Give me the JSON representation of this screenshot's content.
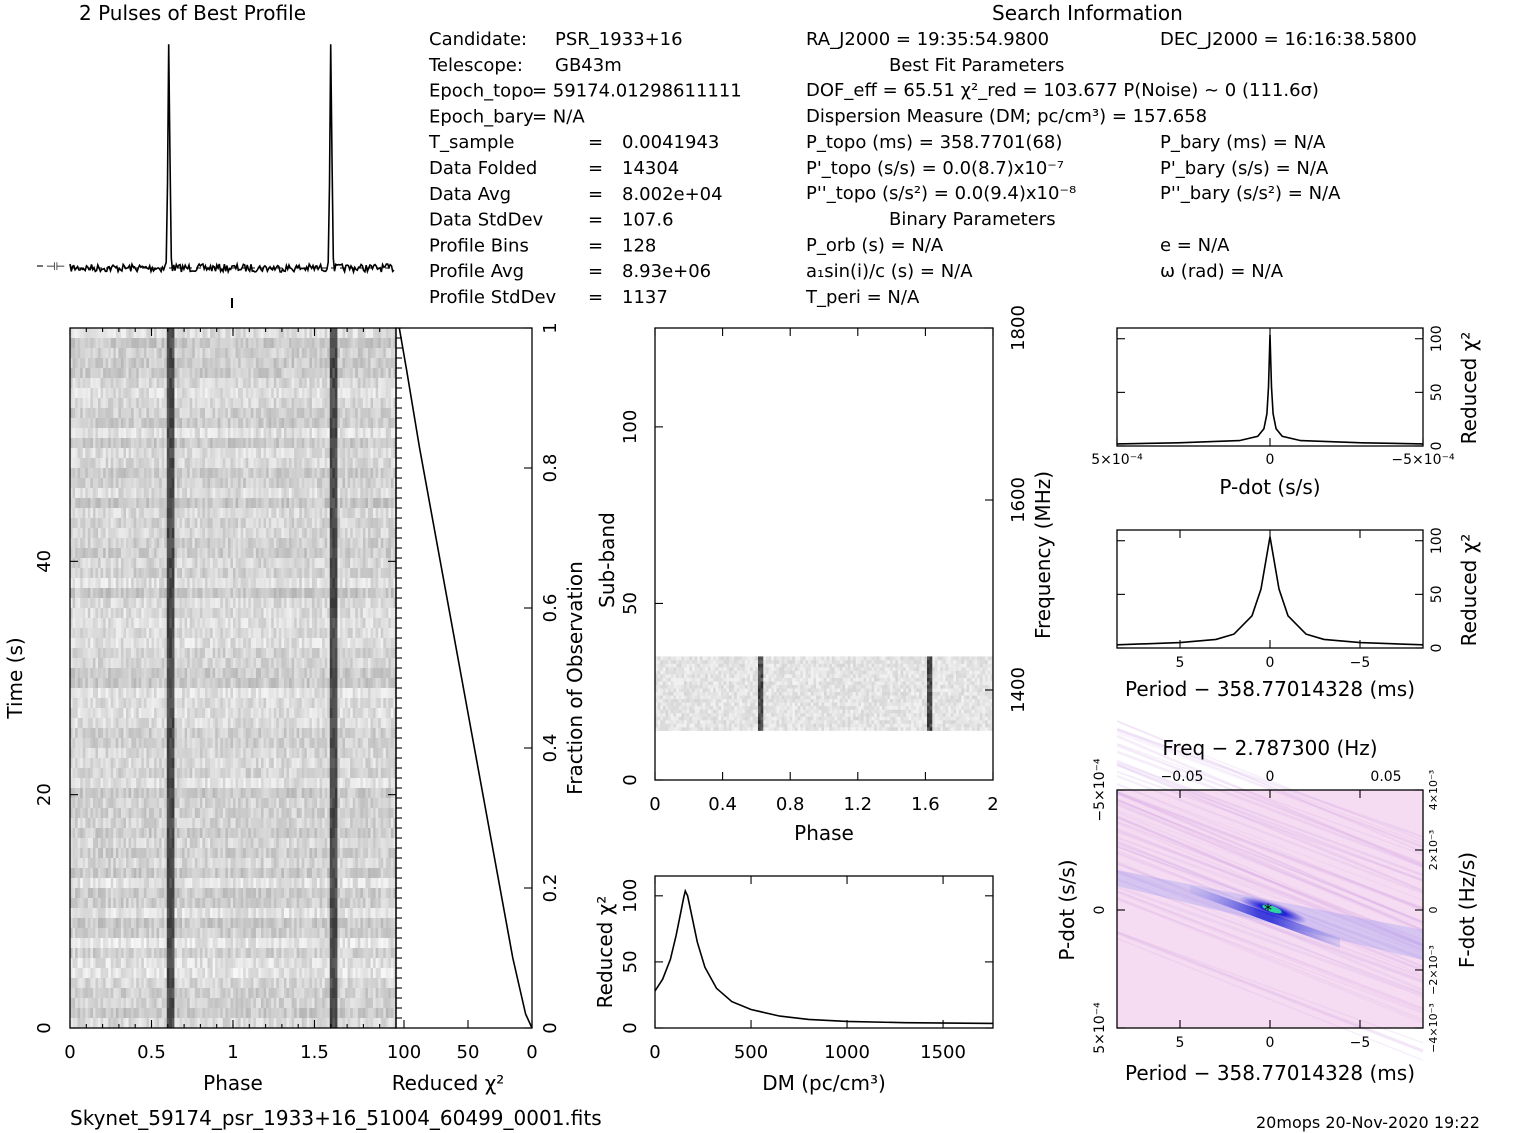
{
  "header": {
    "profile_title": "2 Pulses of Best Profile",
    "search_title": "Search Information",
    "best_fit_title": "Best Fit Parameters",
    "binary_title": "Binary Parameters"
  },
  "info_left": [
    [
      "Candidate:",
      "PSR_1933+16"
    ],
    [
      "Telescope:",
      "GB43m"
    ],
    [
      "Epoch_topo",
      "= 59174.01298611111"
    ],
    [
      "Epoch_bary",
      "= N/A"
    ],
    [
      "T_sample",
      "=",
      "0.0041943"
    ],
    [
      "Data Folded",
      "=",
      "14304"
    ],
    [
      "Data Avg",
      "=",
      "8.002e+04"
    ],
    [
      "Data StdDev",
      "=",
      "107.6"
    ],
    [
      "Profile Bins",
      "=",
      "128"
    ],
    [
      "Profile Avg",
      "=",
      "8.93e+06"
    ],
    [
      "Profile StdDev",
      "=",
      "1137"
    ]
  ],
  "info_mid": {
    "ra": "RA_J2000 = 19:35:54.9800",
    "dof": "DOF_eff = 65.51  χ²_red = 103.677  P(Noise) ~ 0   (111.6σ)",
    "dm": "Dispersion Measure (DM; pc/cm³) = 157.658",
    "p_topo": "P_topo (ms) =  358.7701(68)",
    "pdot_topo": "P'_topo (s/s) = 0.0(8.7)x10⁻⁷",
    "pddot_topo": "P''_topo (s/s²) = 0.0(9.4)x10⁻⁸",
    "p_orb": "P_orb (s) = N/A",
    "a1sini": "a₁sin(i)/c (s) = N/A",
    "t_peri": "T_peri = N/A"
  },
  "info_right": {
    "dec": "DEC_J2000 = 16:16:38.5800",
    "p_bary": "P_bary (ms) = N/A",
    "pdot_bary": "P'_bary (s/s) = N/A",
    "pddot_bary": "P''_bary (s/s²) = N/A",
    "e": "e = N/A",
    "omega": "ω (rad) = N/A"
  },
  "footer": {
    "filename": "Skynet_59174_psr_1933+16_51004_60499_0001.fits",
    "stamp": "20mops 20-Nov-2020 19:22"
  },
  "colors": {
    "grey_base": "#d2d2d2",
    "pulse_line": "#222222",
    "cmap_low": "#f6dcf2",
    "cmap_blue": "#1c1cd6",
    "cmap_green": "#2fd3a0"
  },
  "chart_data": [
    {
      "id": "profile",
      "type": "line",
      "title": "2 Pulses of Best Profile",
      "x": [
        0,
        2
      ],
      "pulse_phases": [
        0.61,
        1.61
      ],
      "peak_relative": 1.0,
      "baseline_relative": 0.0
    },
    {
      "id": "time-phase",
      "type": "heatmap",
      "xlabel": "Phase",
      "ylabel": "Time (s)",
      "xlim": [
        0,
        2
      ],
      "ylim": [
        0,
        60
      ],
      "x_ticks": [
        "0",
        "0.5",
        "1",
        "1.5"
      ],
      "y_ticks": [
        "0",
        "20",
        "40"
      ],
      "pulse_phases": [
        0.61,
        1.61
      ]
    },
    {
      "id": "chi2-vs-fraction",
      "type": "line",
      "xlabel": "Reduced χ²",
      "ylabel": "Fraction of Observation",
      "xlim": [
        100,
        0
      ],
      "ylim": [
        0,
        1
      ],
      "x_ticks": [
        "100",
        "50",
        "0"
      ],
      "y_ticks": [
        "0",
        "0.2",
        "0.4",
        "0.6",
        "0.8",
        "1"
      ],
      "points": [
        [
          0,
          0
        ],
        [
          5,
          0.02
        ],
        [
          15,
          0.1
        ],
        [
          30,
          0.25
        ],
        [
          45,
          0.4
        ],
        [
          60,
          0.55
        ],
        [
          75,
          0.7
        ],
        [
          88,
          0.83
        ],
        [
          98,
          0.94
        ],
        [
          103.677,
          1.0
        ]
      ]
    },
    {
      "id": "subband-phase",
      "type": "heatmap",
      "xlabel": "Phase",
      "ylabel": "Sub-band",
      "y2label": "Frequency (MHz)",
      "xlim": [
        0,
        2
      ],
      "ylim": [
        0,
        128
      ],
      "x_ticks": [
        "0",
        "0.4",
        "0.8",
        "1.2",
        "1.6",
        "2"
      ],
      "y_ticks": [
        "0",
        "50",
        "100"
      ],
      "y2_ticks": [
        "1400",
        "1600",
        "1800"
      ],
      "active_subbands": [
        14,
        35
      ],
      "pulse_phases": [
        0.61,
        1.61
      ]
    },
    {
      "id": "dm-chi2",
      "type": "line",
      "xlabel": "DM (pc/cm³)",
      "ylabel": "Reduced χ²",
      "xlim": [
        0,
        1760
      ],
      "ylim": [
        0,
        115
      ],
      "x_ticks": [
        "0",
        "500",
        "1000",
        "1500"
      ],
      "y_ticks": [
        "0",
        "50",
        "100"
      ],
      "points": [
        [
          0,
          28
        ],
        [
          40,
          37
        ],
        [
          80,
          52
        ],
        [
          110,
          70
        ],
        [
          135,
          88
        ],
        [
          150,
          99
        ],
        [
          157.658,
          103.677
        ],
        [
          170,
          100
        ],
        [
          190,
          86
        ],
        [
          220,
          65
        ],
        [
          260,
          46
        ],
        [
          320,
          30
        ],
        [
          400,
          20
        ],
        [
          500,
          14
        ],
        [
          650,
          9
        ],
        [
          800,
          6.5
        ],
        [
          1000,
          5
        ],
        [
          1300,
          4
        ],
        [
          1760,
          3.5
        ]
      ]
    },
    {
      "id": "pdot-chi2",
      "type": "line",
      "xlabel": "P-dot (s/s)",
      "ylabel": "Reduced χ²",
      "xlim": [
        0.0005,
        -0.0005
      ],
      "ylim": [
        0,
        110
      ],
      "x_ticks": [
        "5×10⁻⁴",
        "0",
        "−5×10⁻⁴"
      ],
      "y_ticks": [
        "0",
        "50",
        "100"
      ],
      "points": [
        [
          0.0005,
          2
        ],
        [
          0.0003,
          3
        ],
        [
          0.0001,
          5
        ],
        [
          4e-05,
          9
        ],
        [
          2e-05,
          16
        ],
        [
          1e-05,
          30
        ],
        [
          5e-06,
          55
        ],
        [
          0,
          103.677
        ],
        [
          -5e-06,
          55
        ],
        [
          -1e-05,
          30
        ],
        [
          -2e-05,
          16
        ],
        [
          -4e-05,
          9
        ],
        [
          -0.0001,
          5
        ],
        [
          -0.0003,
          3
        ],
        [
          -0.0005,
          2
        ]
      ]
    },
    {
      "id": "period-chi2",
      "type": "line",
      "xlabel": "Period − 358.77014328 (ms)",
      "ylabel": "Reduced χ²",
      "xlim": [
        8.5,
        -8.5
      ],
      "ylim": [
        0,
        110
      ],
      "x_ticks": [
        "5",
        "0",
        "−5"
      ],
      "y_ticks": [
        "0",
        "50",
        "100"
      ],
      "points": [
        [
          8.5,
          3
        ],
        [
          5,
          5
        ],
        [
          3,
          8
        ],
        [
          2,
          13
        ],
        [
          1,
          30
        ],
        [
          0.5,
          55
        ],
        [
          0,
          103.677
        ],
        [
          -0.5,
          55
        ],
        [
          -1,
          30
        ],
        [
          -2,
          13
        ],
        [
          -3,
          8
        ],
        [
          -5,
          5
        ],
        [
          -8.5,
          3
        ]
      ]
    },
    {
      "id": "p-pdot",
      "type": "heatmap",
      "title": "Freq − 2.787300 (Hz)",
      "xlabel": "Period − 358.77014328 (ms)",
      "ylabel": "P-dot (s/s)",
      "y2label": "F-dot (Hz/s)",
      "xlim": [
        8.5,
        -8.5
      ],
      "ylim": [
        0.0005,
        -0.0005
      ],
      "x_ticks": [
        "5",
        "0",
        "−5"
      ],
      "top_ticks": [
        "−0.05",
        "0",
        "0.05"
      ],
      "y_ticks": [
        "−5×10⁻⁴",
        "0",
        "5×10⁻⁴"
      ],
      "y2_ticks": [
        "4×10⁻³",
        "2×10⁻³",
        "0",
        "−2×10⁻³",
        "−4×10⁻³"
      ],
      "peak": [
        0,
        0
      ]
    }
  ]
}
